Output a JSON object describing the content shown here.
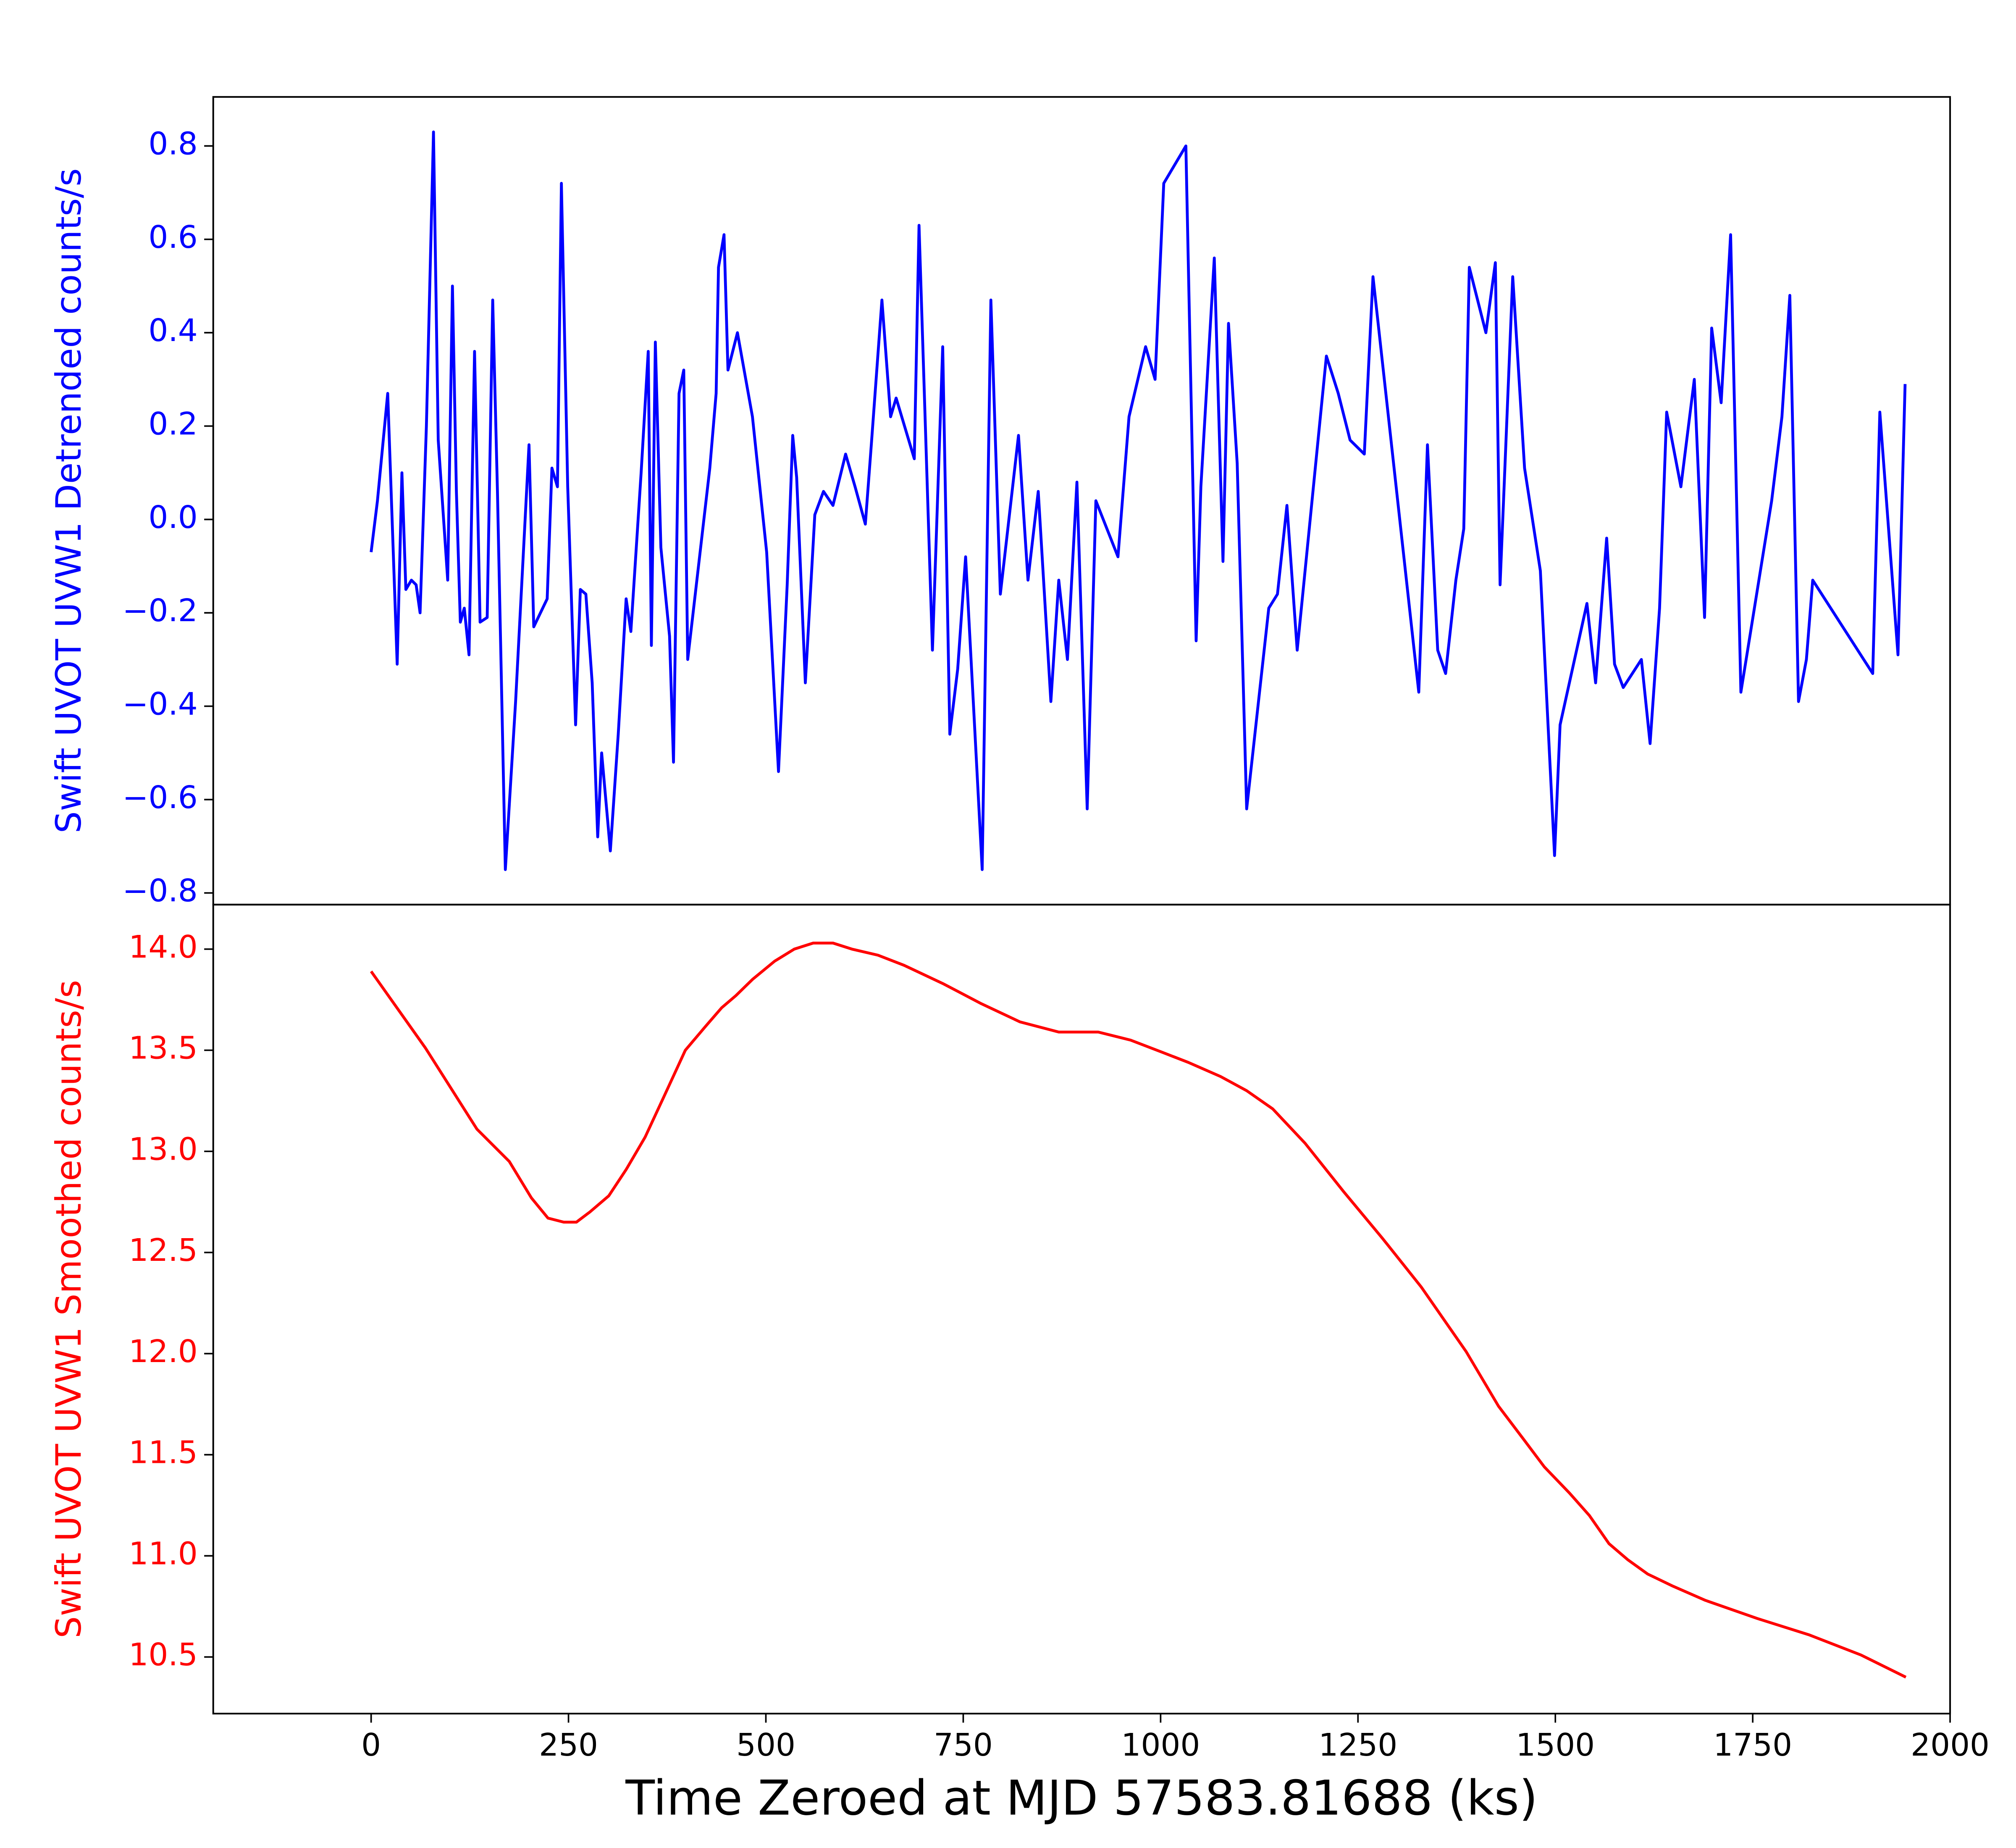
{
  "chart_data": [
    {
      "type": "line",
      "ylabel": "Swift UVOT UVW1  Detrended counts/s",
      "color": "#0000ff",
      "xlim": [
        -200,
        2000
      ],
      "ylim": [
        -0.825,
        0.905
      ],
      "yticks": [
        {
          "value": -0.8,
          "label": "−0.8"
        },
        {
          "value": -0.6,
          "label": "−0.6"
        },
        {
          "value": -0.4,
          "label": "−0.4"
        },
        {
          "value": -0.2,
          "label": "−0.2"
        },
        {
          "value": 0,
          "label": "0.0"
        },
        0.2,
        0.4,
        0.6,
        0.8
      ],
      "x": [
        0,
        8,
        21,
        33,
        39,
        44,
        51,
        57,
        62,
        70,
        79,
        85,
        97,
        103,
        108,
        113,
        118,
        124,
        131,
        138,
        147,
        154,
        160,
        170,
        183,
        200,
        206,
        223,
        229,
        236,
        241,
        249,
        259,
        265,
        272,
        280,
        287,
        292,
        303,
        313,
        323,
        329,
        342,
        351,
        355,
        360,
        367,
        378,
        383,
        390,
        396,
        401,
        429,
        437,
        440,
        447,
        452,
        464,
        483,
        501,
        516,
        527,
        534,
        539,
        550,
        562,
        573,
        585,
        601,
        613,
        626,
        634,
        647,
        658,
        665,
        688,
        694,
        711,
        724,
        733,
        743,
        753,
        774,
        785,
        797,
        820,
        832,
        845,
        861,
        871,
        882,
        894,
        907,
        918,
        946,
        960,
        981,
        993,
        1004,
        1032,
        1045,
        1051,
        1068,
        1079,
        1086,
        1097,
        1109,
        1137,
        1148,
        1160,
        1173,
        1210,
        1225,
        1240,
        1258,
        1269,
        1327,
        1338,
        1351,
        1361,
        1374,
        1384,
        1391,
        1412,
        1424,
        1430,
        1446,
        1461,
        1481,
        1499,
        1506,
        1540,
        1551,
        1565,
        1575,
        1586,
        1609,
        1620,
        1632,
        1641,
        1659,
        1676,
        1689,
        1698,
        1710,
        1722,
        1735,
        1774,
        1787,
        1797,
        1808,
        1818,
        1826,
        1902,
        1911,
        1934,
        1943
      ],
      "values": [
        -0.07,
        0.04,
        0.27,
        -0.31,
        0.1,
        -0.15,
        -0.13,
        -0.14,
        -0.2,
        0.2,
        0.83,
        0.17,
        -0.13,
        0.5,
        0.06,
        -0.22,
        -0.19,
        -0.29,
        0.36,
        -0.22,
        -0.21,
        0.47,
        0.06,
        -0.75,
        -0.39,
        0.16,
        -0.23,
        -0.17,
        0.11,
        0.07,
        0.72,
        0.07,
        -0.44,
        -0.15,
        -0.16,
        -0.35,
        -0.68,
        -0.5,
        -0.71,
        -0.46,
        -0.17,
        -0.24,
        0.1,
        0.36,
        -0.27,
        0.38,
        -0.06,
        -0.25,
        -0.52,
        0.27,
        0.32,
        -0.3,
        0.11,
        0.27,
        0.54,
        0.61,
        0.32,
        0.4,
        0.22,
        -0.07,
        -0.54,
        -0.14,
        0.18,
        0.09,
        -0.35,
        0.01,
        0.06,
        0.03,
        0.14,
        0.07,
        -0.01,
        0.17,
        0.47,
        0.22,
        0.26,
        0.13,
        0.63,
        -0.28,
        0.37,
        -0.46,
        -0.32,
        -0.08,
        -0.75,
        0.47,
        -0.16,
        0.18,
        -0.13,
        0.06,
        -0.39,
        -0.13,
        -0.3,
        0.08,
        -0.62,
        0.04,
        -0.08,
        0.22,
        0.37,
        0.3,
        0.72,
        0.8,
        -0.26,
        0.07,
        0.56,
        -0.09,
        0.42,
        0.12,
        -0.62,
        -0.19,
        -0.16,
        0.03,
        -0.28,
        0.35,
        0.27,
        0.17,
        0.14,
        0.52,
        -0.37,
        0.16,
        -0.28,
        -0.33,
        -0.13,
        -0.02,
        0.54,
        0.4,
        0.55,
        -0.14,
        0.52,
        0.11,
        -0.11,
        -0.72,
        -0.44,
        -0.18,
        -0.35,
        -0.04,
        -0.31,
        -0.36,
        -0.3,
        -0.48,
        -0.19,
        0.23,
        0.07,
        0.3,
        -0.21,
        0.41,
        0.25,
        0.61,
        -0.37,
        0.04,
        0.22,
        0.48,
        -0.39,
        -0.3,
        -0.13,
        -0.33,
        0.23,
        -0.29,
        0.29
      ]
    },
    {
      "type": "line",
      "ylabel": "Swift UVOT UVW1 Smoothed counts/s",
      "xlabel": "Time Zeroed at MJD 57583.81688 (ks)",
      "color": "#ff0000",
      "xlim": [
        -200,
        2000
      ],
      "ylim": [
        10.22,
        14.22
      ],
      "xticks": [
        0,
        250,
        500,
        750,
        1000,
        1250,
        1500,
        1750,
        2000
      ],
      "yticks": [
        10.5,
        {
          "value": 11,
          "label": "11.0"
        },
        11.5,
        {
          "value": 12,
          "label": "12.0"
        },
        12.5,
        {
          "value": 13,
          "label": "13.0"
        },
        13.5,
        {
          "value": 14,
          "label": "14.0"
        }
      ],
      "x": [
        0,
        69,
        134,
        175,
        203,
        224,
        244,
        260,
        277,
        301,
        323,
        347,
        372,
        398,
        424,
        444,
        462,
        483,
        511,
        536,
        560,
        585,
        609,
        642,
        675,
        724,
        773,
        822,
        871,
        921,
        962,
        1002,
        1035,
        1076,
        1109,
        1142,
        1183,
        1232,
        1281,
        1330,
        1387,
        1428,
        1461,
        1486,
        1518,
        1543,
        1568,
        1592,
        1617,
        1649,
        1690,
        1756,
        1821,
        1887,
        1944
      ],
      "values": [
        13.89,
        13.51,
        13.11,
        12.95,
        12.77,
        12.67,
        12.65,
        12.65,
        12.7,
        12.78,
        12.91,
        13.07,
        13.28,
        13.5,
        13.62,
        13.71,
        13.77,
        13.85,
        13.94,
        14.0,
        14.03,
        14.03,
        14.0,
        13.97,
        13.92,
        13.83,
        13.73,
        13.64,
        13.59,
        13.59,
        13.55,
        13.49,
        13.44,
        13.37,
        13.3,
        13.21,
        13.04,
        12.8,
        12.57,
        12.33,
        12.01,
        11.74,
        11.57,
        11.44,
        11.31,
        11.2,
        11.06,
        10.98,
        10.91,
        10.85,
        10.78,
        10.69,
        10.61,
        10.51,
        10.4
      ]
    }
  ]
}
